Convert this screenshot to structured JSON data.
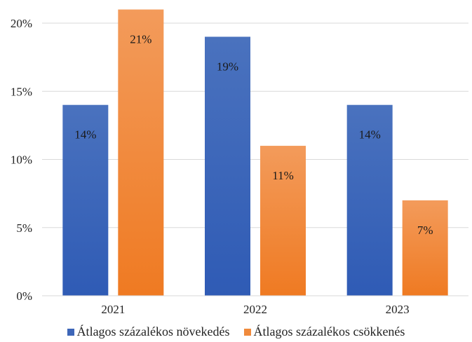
{
  "chart_data": {
    "type": "bar",
    "categories": [
      "2021",
      "2022",
      "2023"
    ],
    "series": [
      {
        "name": "Átlagos százalékos növekedés",
        "values": [
          14,
          19,
          14
        ],
        "labels": [
          "14%",
          "19%",
          "14%"
        ],
        "color": "#4a72be"
      },
      {
        "name": "Átlagos százalékos csökkenés",
        "values": [
          21,
          11,
          7
        ],
        "labels": [
          "21%",
          "11%",
          "7%"
        ],
        "color": "#f08a3c"
      }
    ],
    "ylim": [
      0,
      20
    ],
    "yticks": [
      0,
      5,
      10,
      15,
      20
    ],
    "ytick_labels": [
      "0%",
      "5%",
      "10%",
      "15%",
      "20%"
    ],
    "title": "",
    "xlabel": "",
    "ylabel": "",
    "grid": true,
    "legend_position": "bottom"
  }
}
